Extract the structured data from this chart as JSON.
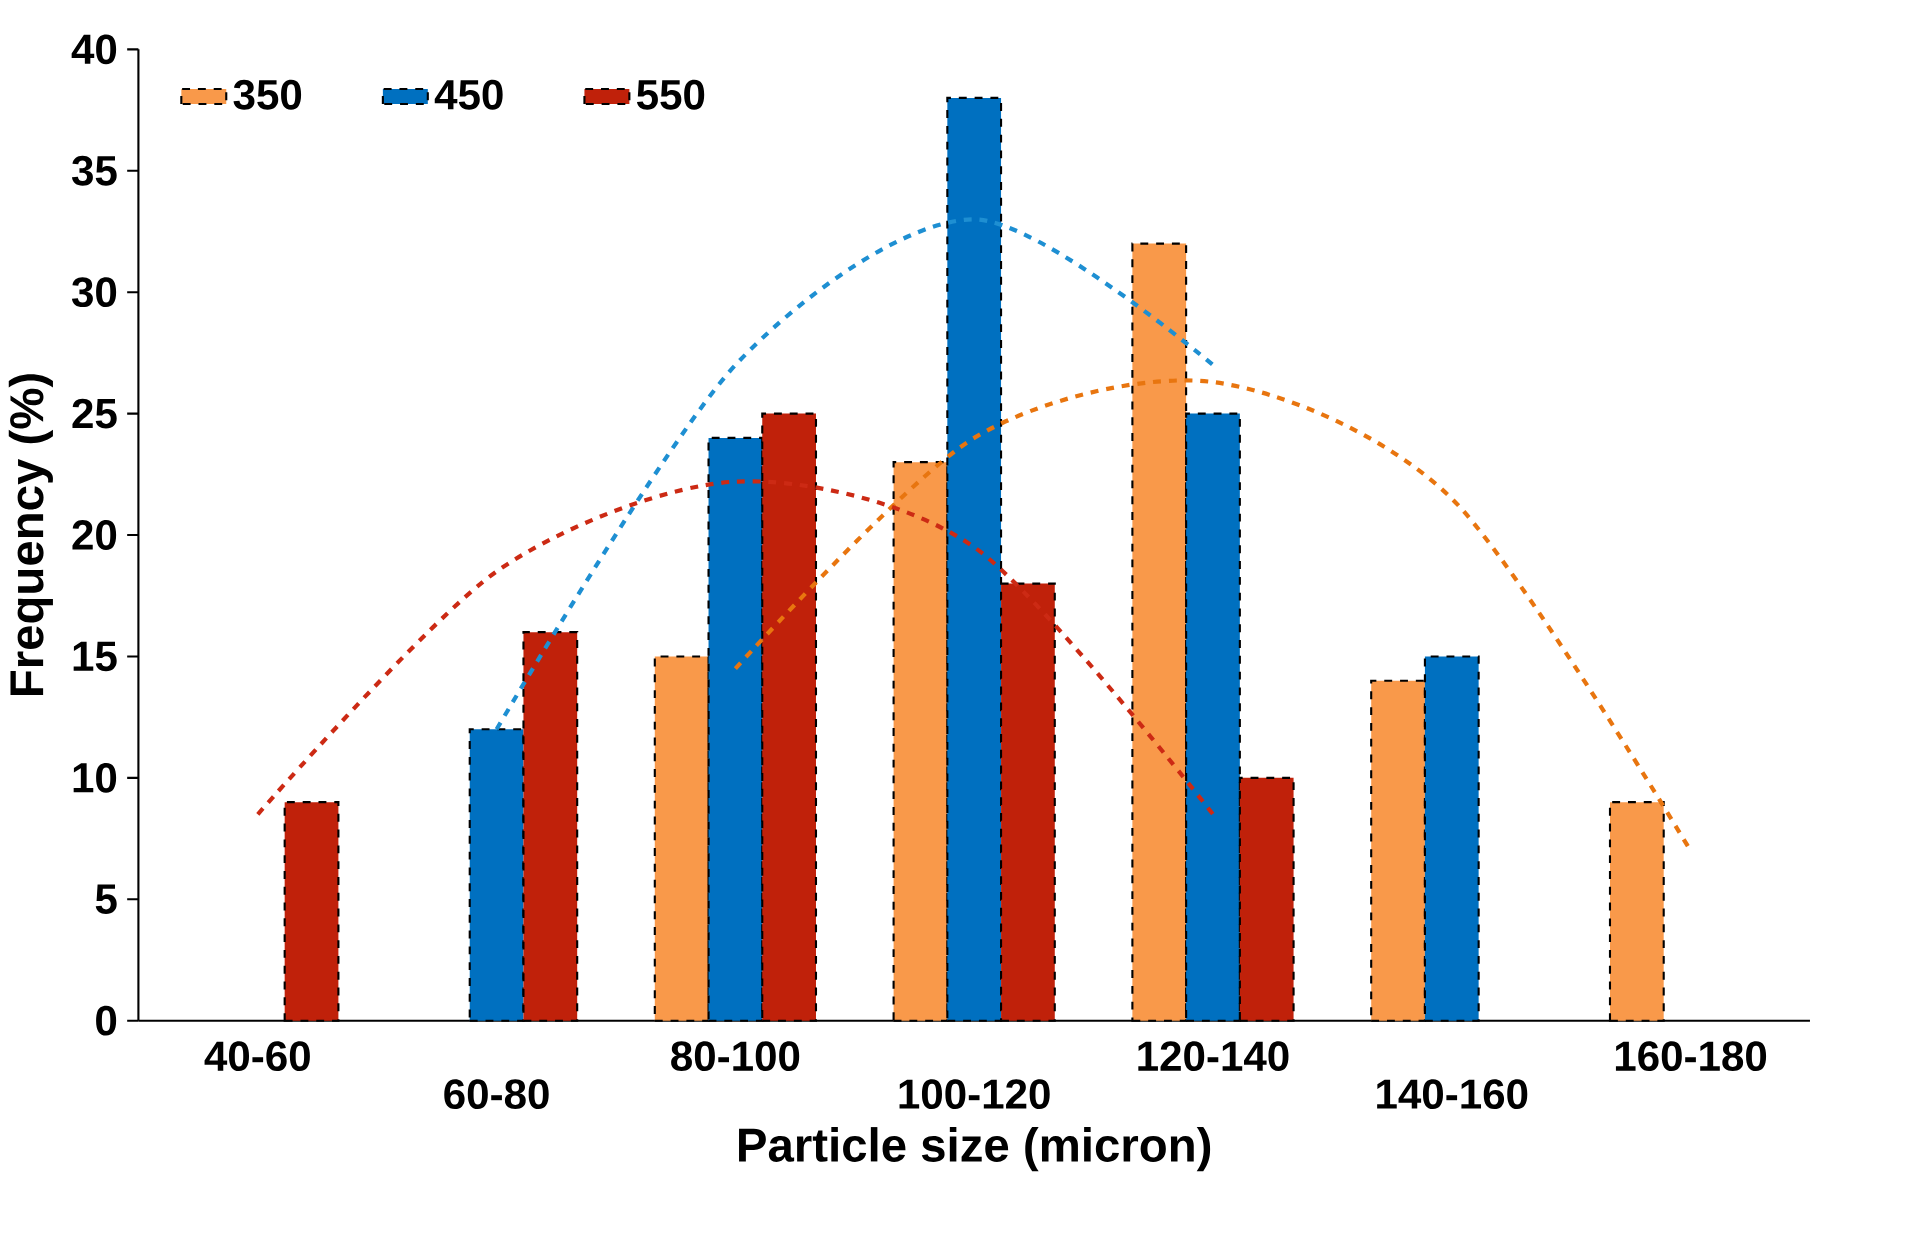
{
  "chart_data": {
    "type": "bar",
    "xlabel": "Particle size (micron)",
    "ylabel": "Frequency (%)",
    "categories": [
      "40-60",
      "60-80",
      "80-100",
      "100-120",
      "120-140",
      "140-160",
      "160-180"
    ],
    "series": [
      {
        "name": "350",
        "color": "#f9994a",
        "values": [
          null,
          null,
          15,
          23,
          32,
          14,
          9
        ]
      },
      {
        "name": "450",
        "color": "#0070c0",
        "values": [
          null,
          12,
          24,
          38,
          25,
          15,
          null
        ]
      },
      {
        "name": "550",
        "color": "#c0210a",
        "values": [
          9,
          16,
          25,
          18,
          10,
          null,
          null
        ]
      },
      {
        "type": "line",
        "color": "#e8750f",
        "values": [
          null,
          null,
          14.5,
          24,
          26.3,
          21.5,
          7
        ]
      },
      {
        "type": "line",
        "color": "#1e8fd2",
        "values": [
          null,
          12,
          27,
          33,
          27,
          null,
          null
        ]
      },
      {
        "type": "line",
        "color": "#cc2a14",
        "values": [
          8.5,
          18.5,
          22.2,
          19.5,
          8.5,
          null,
          null
        ]
      }
    ],
    "ylim": [
      0,
      40
    ],
    "yticks": [
      0,
      5,
      10,
      15,
      20,
      25,
      30,
      35,
      40
    ],
    "legend": "top left",
    "grid": false,
    "line_style": "dashed"
  }
}
